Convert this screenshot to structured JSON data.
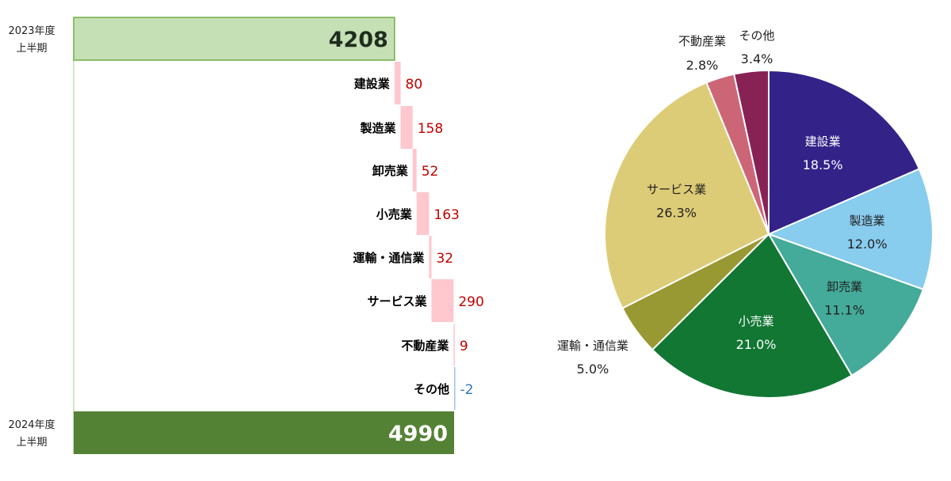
{
  "colors": {
    "start_fill": "#c5e0b4",
    "start_stroke": "#70ad47",
    "end_fill": "#548235",
    "increase": "#ffc7ce",
    "decrease": "#9dc3e6",
    "positive_text": "#c00000",
    "negative_text": "#2e75b6",
    "axis": "#a9d18e",
    "total_dark_text": "#1f2d1f",
    "total_light_text": "#ffffff"
  },
  "chart_data": [
    {
      "type": "bar",
      "subtype": "waterfall",
      "orientation": "horizontal",
      "title": "",
      "xlabel": "",
      "ylabel": "",
      "start": {
        "label_line1": "2023年度",
        "label_line2": "上半期",
        "value": 4208
      },
      "end": {
        "label_line1": "2024年度",
        "label_line2": "上半期",
        "value": 4990
      },
      "categories": [
        "建設業",
        "製造業",
        "卸売業",
        "小売業",
        "運輸・通信業",
        "サービス業",
        "不動産業",
        "その他"
      ],
      "values": [
        80,
        158,
        52,
        163,
        32,
        290,
        9,
        -2
      ],
      "value_labels": [
        "80",
        "158",
        "52",
        "163",
        "32",
        "290",
        "9",
        "-2"
      ],
      "grid": false
    },
    {
      "type": "pie",
      "title": "",
      "start_angle_deg": 0,
      "direction": "clockwise",
      "slices": [
        {
          "label": "建設業",
          "pct_label": "18.5%",
          "value": 18.5,
          "color": "#332288",
          "text_color": "#ffffff",
          "label_position": "inside"
        },
        {
          "label": "製造業",
          "pct_label": "12.0%",
          "value": 12.0,
          "color": "#88ccee",
          "text_color": "#222222",
          "label_position": "inside"
        },
        {
          "label": "卸売業",
          "pct_label": "11.1%",
          "value": 11.1,
          "color": "#44aa99",
          "text_color": "#222222",
          "label_position": "inside"
        },
        {
          "label": "小売業",
          "pct_label": "21.0%",
          "value": 21.0,
          "color": "#117733",
          "text_color": "#ffffff",
          "label_position": "inside"
        },
        {
          "label": "運輸・通信業",
          "pct_label": "5.0%",
          "value": 5.0,
          "color": "#999933",
          "text_color": "#222222",
          "label_position": "outside"
        },
        {
          "label": "サービス業",
          "pct_label": "26.3%",
          "value": 26.3,
          "color": "#ddcc77",
          "text_color": "#222222",
          "label_position": "inside"
        },
        {
          "label": "不動産業",
          "pct_label": "2.8%",
          "value": 2.8,
          "color": "#cc6677",
          "text_color": "#222222",
          "label_position": "outside"
        },
        {
          "label": "その他",
          "pct_label": "3.4%",
          "value": 3.4,
          "color": "#882255",
          "text_color": "#222222",
          "label_position": "outside"
        }
      ]
    }
  ]
}
